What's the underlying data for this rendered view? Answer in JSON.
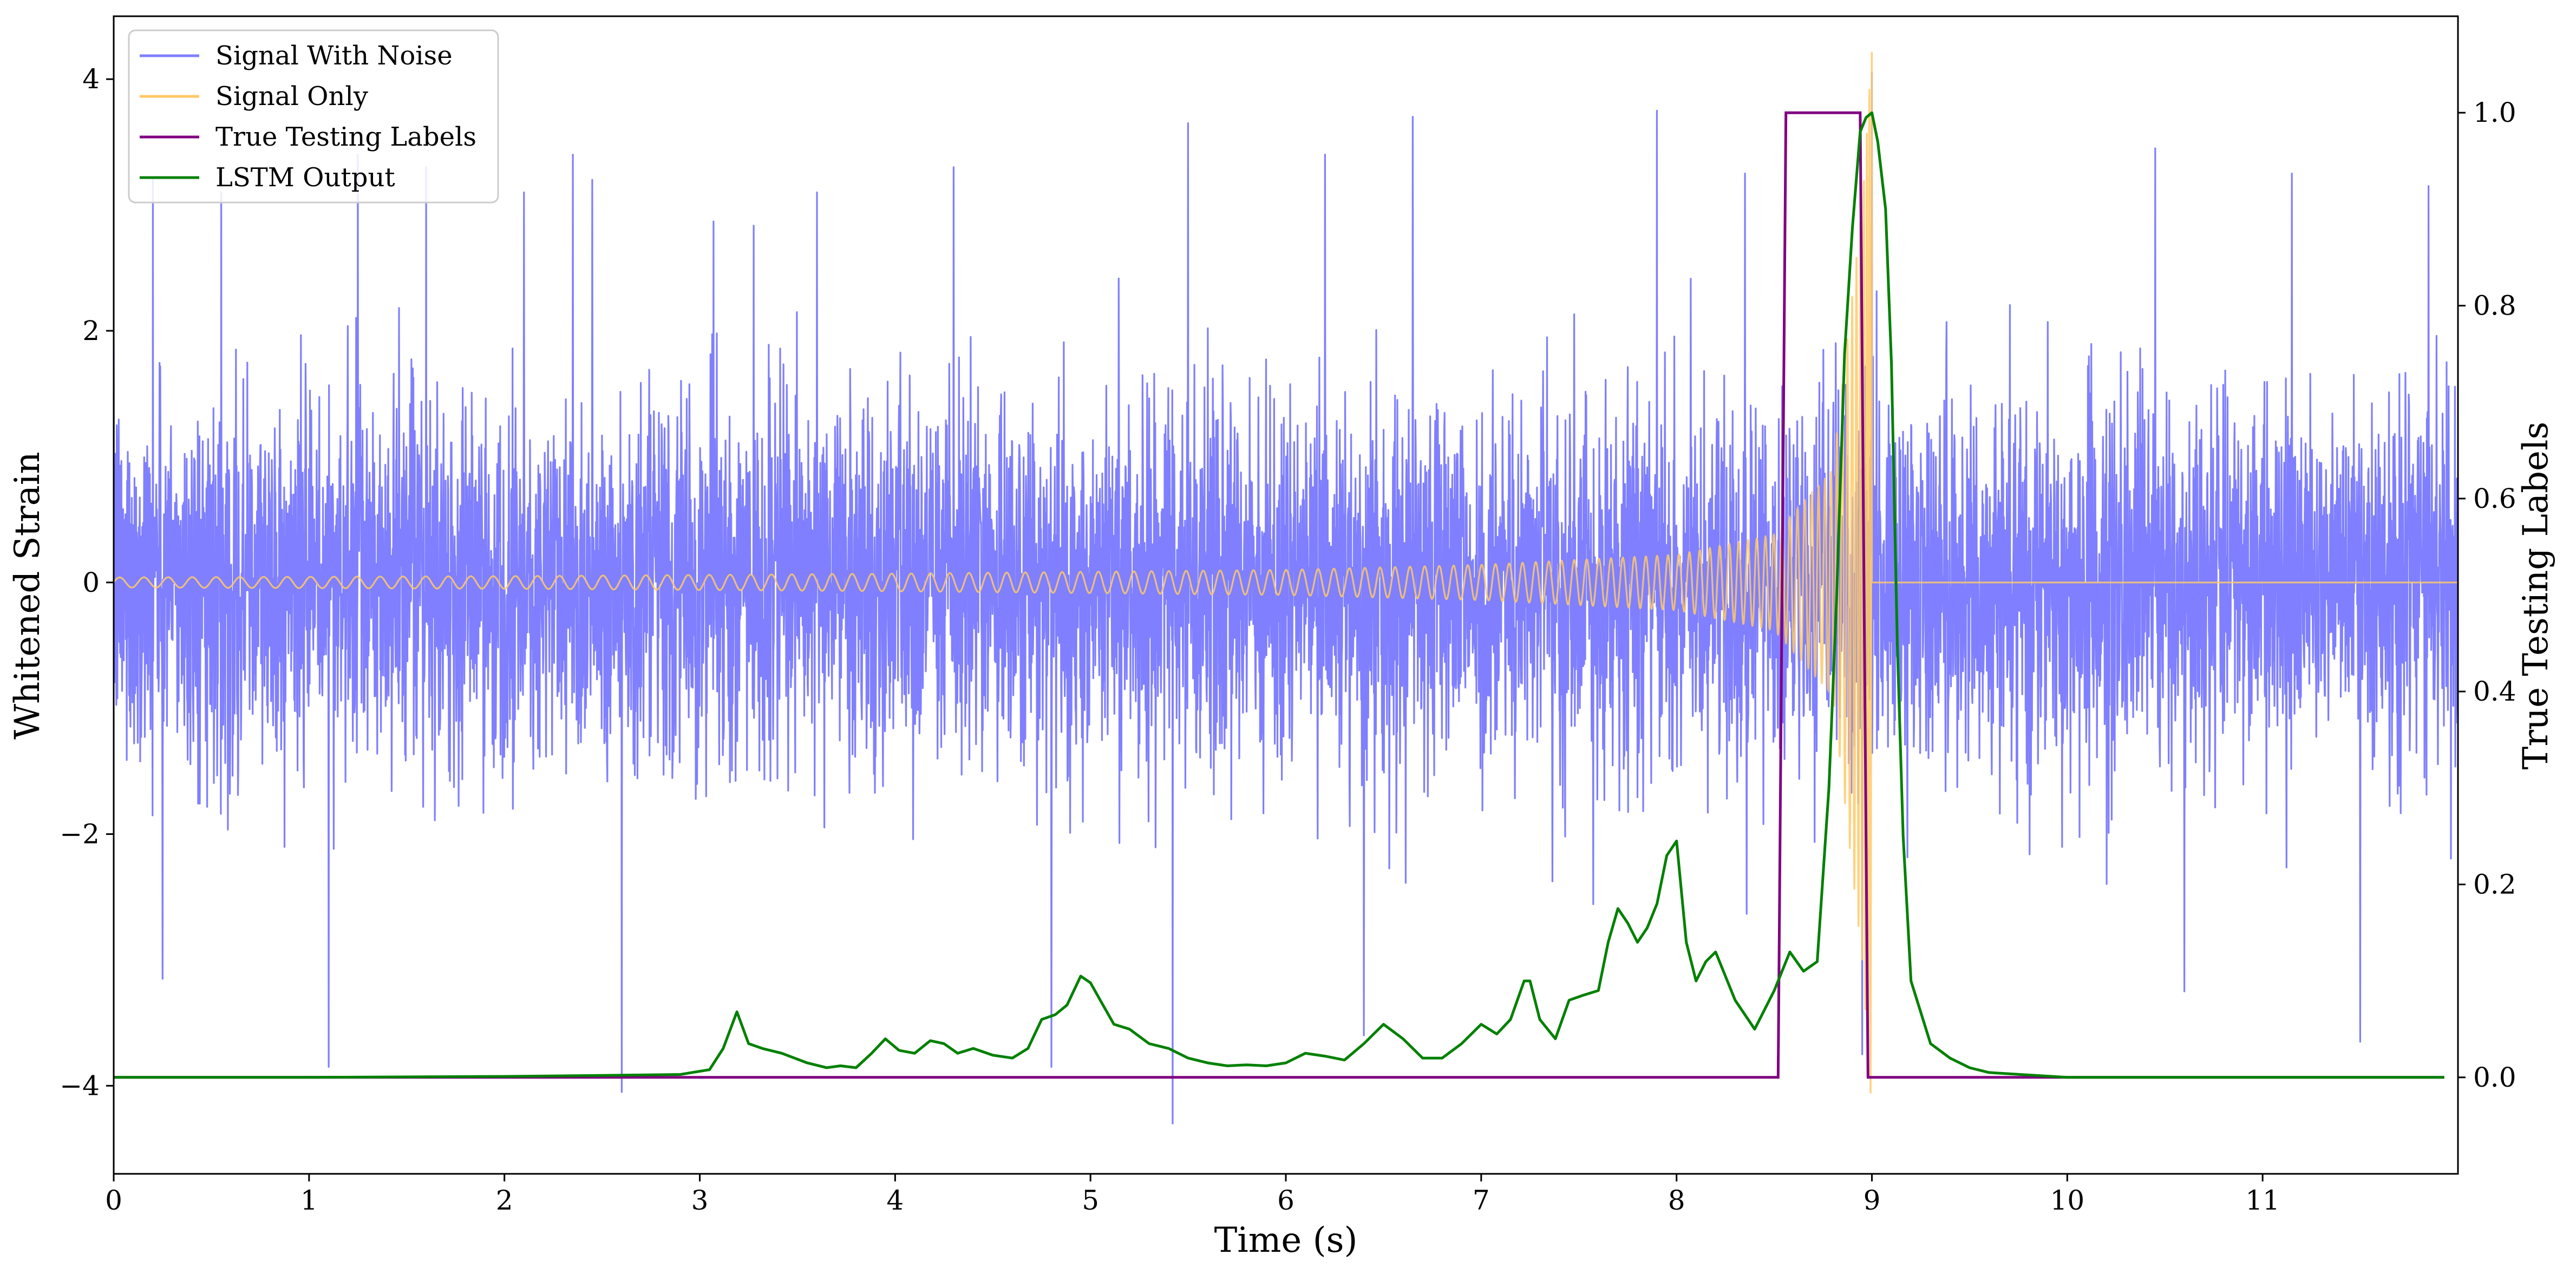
{
  "chart_data": {
    "type": "line",
    "title": "",
    "xlabel": "Time (s)",
    "ylabel": "Whitened Strain",
    "y2label": "True Testing Labels",
    "xlim": [
      0,
      12
    ],
    "ylim": [
      -4.7,
      4.5
    ],
    "y2lim": [
      -0.1,
      1.1
    ],
    "xticks": [
      0,
      1,
      2,
      3,
      4,
      5,
      6,
      7,
      8,
      9,
      10,
      11
    ],
    "yticks": [
      -4,
      -2,
      0,
      2,
      4
    ],
    "y2ticks": [
      0.0,
      0.2,
      0.4,
      0.6,
      0.8,
      1.0
    ],
    "xtick_labels": [
      "0",
      "1",
      "2",
      "3",
      "4",
      "5",
      "6",
      "7",
      "8",
      "9",
      "10",
      "11"
    ],
    "ytick_labels": [
      "−4",
      "−2",
      "0",
      "2",
      "4"
    ],
    "y2tick_labels": [
      "0.0",
      "0.2",
      "0.4",
      "0.6",
      "0.8",
      "1.0"
    ],
    "grid": false,
    "legend_position": "top-left",
    "series": [
      {
        "name": "Signal With Noise",
        "axis": "left",
        "color": "#7f7fff",
        "description_values": {
          "x_range": [
            0,
            12
          ],
          "typical_range": [
            -1.8,
            2.4
          ],
          "peaks": [
            {
              "x": 0.2,
              "y": 3.2
            },
            {
              "x": 0.55,
              "y": 3.1
            },
            {
              "x": 1.25,
              "y": 3.4
            },
            {
              "x": 1.6,
              "y": 3.3
            },
            {
              "x": 2.1,
              "y": 3.1
            },
            {
              "x": 2.35,
              "y": 3.4
            },
            {
              "x": 2.45,
              "y": 3.2
            },
            {
              "x": 3.6,
              "y": 3.1
            },
            {
              "x": 4.3,
              "y": 3.3
            },
            {
              "x": 5.5,
              "y": 3.65
            },
            {
              "x": 6.2,
              "y": 3.4
            },
            {
              "x": 6.65,
              "y": 3.7
            },
            {
              "x": 7.9,
              "y": 3.75
            },
            {
              "x": 8.35,
              "y": 3.25
            },
            {
              "x": 9.0,
              "y": 4.05
            },
            {
              "x": 10.45,
              "y": 3.45
            },
            {
              "x": 11.15,
              "y": 3.25
            },
            {
              "x": 11.85,
              "y": 3.15
            }
          ],
          "troughs": [
            {
              "x": 0.25,
              "y": -3.15
            },
            {
              "x": 1.1,
              "y": -3.85
            },
            {
              "x": 2.6,
              "y": -4.05
            },
            {
              "x": 4.8,
              "y": -3.85
            },
            {
              "x": 5.42,
              "y": -4.3
            },
            {
              "x": 6.4,
              "y": -3.6
            },
            {
              "x": 8.95,
              "y": -3.75
            },
            {
              "x": 10.6,
              "y": -3.25
            },
            {
              "x": 11.5,
              "y": -3.65
            }
          ]
        }
      },
      {
        "name": "Signal Only",
        "axis": "left",
        "color": "#ffc966",
        "description_values": {
          "x_range": [
            0,
            12
          ],
          "envelope": [
            {
              "x": 0,
              "amp": 0.04
            },
            {
              "x": 2,
              "amp": 0.05
            },
            {
              "x": 4,
              "amp": 0.07
            },
            {
              "x": 6,
              "amp": 0.1
            },
            {
              "x": 7,
              "amp": 0.14
            },
            {
              "x": 8,
              "amp": 0.22
            },
            {
              "x": 8.5,
              "amp": 0.38
            },
            {
              "x": 8.8,
              "amp": 0.9
            },
            {
              "x": 8.95,
              "amp": 3.0
            },
            {
              "x": 9.0,
              "amp": 4.3
            }
          ],
          "after_merger": 0
        }
      },
      {
        "name": "True Testing Labels",
        "axis": "right",
        "color": "#800080",
        "x": [
          0,
          8.52,
          8.56,
          8.94,
          8.98,
          11.93
        ],
        "values": [
          0,
          0,
          1,
          1,
          0,
          0
        ]
      },
      {
        "name": "LSTM Output",
        "axis": "right",
        "color": "#008000",
        "x": [
          0,
          1,
          2,
          2.5,
          2.9,
          3.05,
          3.12,
          3.19,
          3.25,
          3.32,
          3.42,
          3.55,
          3.65,
          3.72,
          3.8,
          3.88,
          3.95,
          4.02,
          4.1,
          4.18,
          4.25,
          4.32,
          4.4,
          4.5,
          4.6,
          4.68,
          4.75,
          4.82,
          4.88,
          4.95,
          5.0,
          5.05,
          5.12,
          5.2,
          5.3,
          5.4,
          5.5,
          5.6,
          5.7,
          5.8,
          5.9,
          6.0,
          6.1,
          6.2,
          6.3,
          6.4,
          6.5,
          6.6,
          6.7,
          6.8,
          6.9,
          7.0,
          7.08,
          7.15,
          7.22,
          7.25,
          7.3,
          7.38,
          7.45,
          7.52,
          7.6,
          7.65,
          7.7,
          7.75,
          7.8,
          7.85,
          7.9,
          7.95,
          8.0,
          8.05,
          8.1,
          8.15,
          8.2,
          8.3,
          8.4,
          8.5,
          8.58,
          8.65,
          8.72,
          8.78,
          8.82,
          8.86,
          8.9,
          8.94,
          8.97,
          9.0,
          9.03,
          9.07,
          9.1,
          9.13,
          9.16,
          9.2,
          9.3,
          9.4,
          9.5,
          9.6,
          10,
          11,
          11.93
        ],
        "values": [
          0,
          0,
          0.001,
          0.002,
          0.003,
          0.008,
          0.03,
          0.068,
          0.035,
          0.03,
          0.025,
          0.015,
          0.01,
          0.012,
          0.01,
          0.025,
          0.04,
          0.028,
          0.025,
          0.038,
          0.035,
          0.025,
          0.03,
          0.023,
          0.02,
          0.03,
          0.06,
          0.065,
          0.075,
          0.105,
          0.098,
          0.08,
          0.055,
          0.05,
          0.035,
          0.03,
          0.02,
          0.015,
          0.012,
          0.013,
          0.012,
          0.015,
          0.025,
          0.022,
          0.018,
          0.035,
          0.055,
          0.04,
          0.02,
          0.02,
          0.035,
          0.055,
          0.045,
          0.06,
          0.1,
          0.1,
          0.06,
          0.04,
          0.08,
          0.085,
          0.09,
          0.14,
          0.175,
          0.16,
          0.14,
          0.155,
          0.18,
          0.23,
          0.245,
          0.14,
          0.1,
          0.12,
          0.13,
          0.08,
          0.05,
          0.09,
          0.13,
          0.11,
          0.12,
          0.3,
          0.5,
          0.75,
          0.88,
          0.98,
          0.995,
          1.0,
          0.97,
          0.9,
          0.74,
          0.45,
          0.25,
          0.1,
          0.035,
          0.02,
          0.01,
          0.005,
          0,
          0,
          0
        ]
      }
    ]
  }
}
